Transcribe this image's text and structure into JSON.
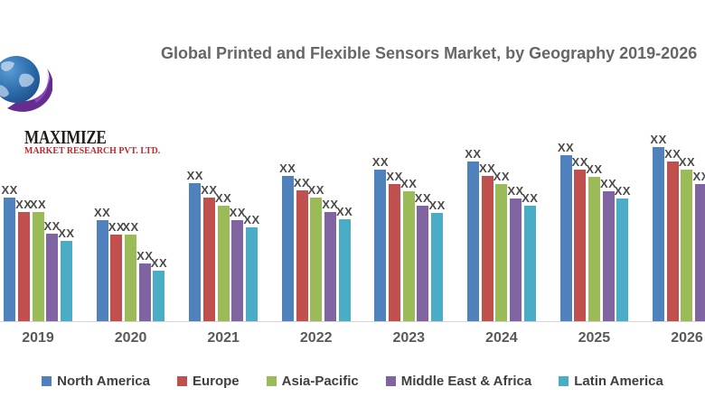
{
  "logo": {
    "line1": "MAXIMIZE",
    "line2": "MARKET RESEARCH PVT. LTD.",
    "colors": {
      "line1_text": "#241b18",
      "line2_text": "#c1272d",
      "globe_blue": "#2f6fae",
      "globe_dark_blue": "#1b4e8a",
      "swoosh_purple": "#662d91"
    }
  },
  "title": {
    "text": "Global Printed and Flexible Sensors Market, by Geography 2019-2026",
    "color": "#666666"
  },
  "chart_data": {
    "type": "bar",
    "title": "Global Printed and Flexible Sensors Market, by Geography 2019-2026",
    "categories": [
      "2019",
      "2020",
      "2021",
      "2022",
      "2023",
      "2024",
      "2025",
      "2026"
    ],
    "series": [
      {
        "name": "North America",
        "color": "#4f81bd",
        "values": [
          137,
          112,
          153,
          161,
          168,
          177,
          184,
          193
        ]
      },
      {
        "name": "Europe",
        "color": "#c0504d",
        "values": [
          121,
          96,
          137,
          145,
          152,
          161,
          168,
          177
        ]
      },
      {
        "name": "Asia-Pacific",
        "color": "#9bbb59",
        "values": [
          121,
          96,
          128,
          137,
          144,
          152,
          160,
          168
        ]
      },
      {
        "name": "Middle East & Africa",
        "color": "#8064a2",
        "values": [
          97,
          64,
          112,
          121,
          128,
          136,
          144,
          152
        ]
      },
      {
        "name": "Latin America",
        "color": "#4bacc6",
        "values": [
          89,
          56,
          104,
          113,
          120,
          128,
          136,
          null
        ]
      }
    ],
    "data_label_text": "XX",
    "value_units": "relative bar height in px; actual figures masked as XX on the chart",
    "ylim": [
      0,
      200
    ],
    "grid": false,
    "y_axis_shown": false,
    "legend_position": "bottom",
    "axis_label_color": "#595959",
    "data_label_color": "#4a4a4a",
    "note": "rightmost 2026 group and title are clipped by the image edge; Latin America 2026 bar not visible"
  }
}
